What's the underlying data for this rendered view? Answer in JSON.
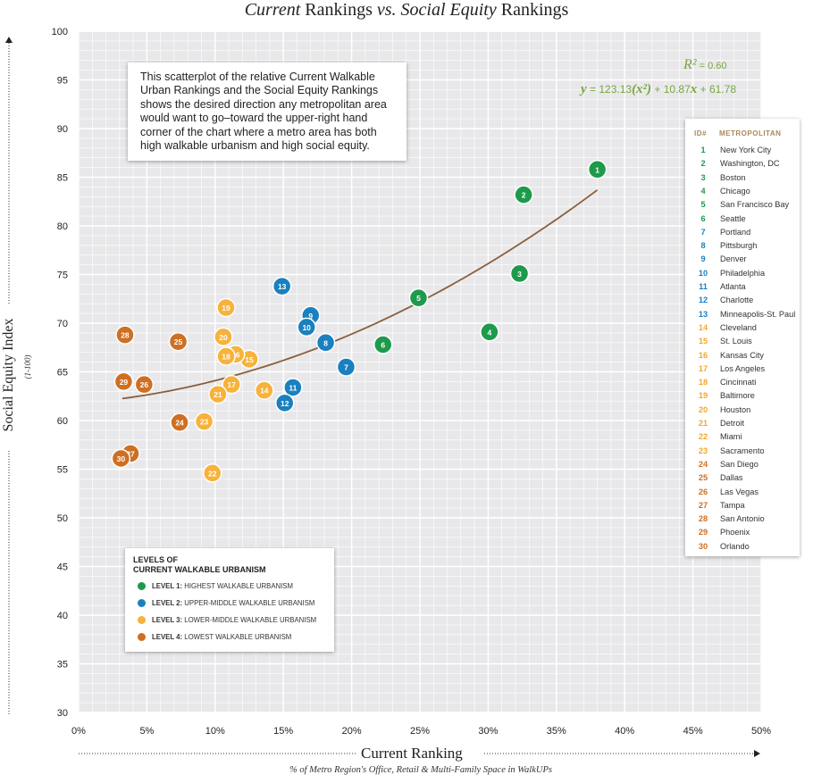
{
  "title": {
    "italic1": "Current",
    "mid": " Rankings ",
    "vs": "vs.",
    "italic2": " Social Equity",
    "end": " Rankings"
  },
  "annotation": "This scatterplot of the relative Current Walkable Urban Rankings and the Social Equity Rankings shows the desired direction any metropolitan area would want to go–toward the upper-right hand corner of the chart where a metro area has both high walkable urbanism and high social equity.",
  "r2": {
    "symbol": "R²",
    "value": " = 0.60"
  },
  "equation": {
    "y": "y",
    "text1": " = 123.13",
    "xsq": "(x²)",
    "text2": " + 10.87",
    "x": "x",
    "text3": " + 61.78"
  },
  "metro_list": {
    "header_id": "ID#",
    "header_name": "METROPOLITAN",
    "items": [
      {
        "id": "1",
        "name": "New York City",
        "level": 1
      },
      {
        "id": "2",
        "name": "Washington, DC",
        "level": 1
      },
      {
        "id": "3",
        "name": "Boston",
        "level": 1
      },
      {
        "id": "4",
        "name": "Chicago",
        "level": 1
      },
      {
        "id": "5",
        "name": "San Francisco Bay",
        "level": 1
      },
      {
        "id": "6",
        "name": "Seattle",
        "level": 1
      },
      {
        "id": "7",
        "name": "Portland",
        "level": 2
      },
      {
        "id": "8",
        "name": "Pittsburgh",
        "level": 2
      },
      {
        "id": "9",
        "name": "Denver",
        "level": 2
      },
      {
        "id": "10",
        "name": "Philadelphia",
        "level": 2
      },
      {
        "id": "11",
        "name": "Atlanta",
        "level": 2
      },
      {
        "id": "12",
        "name": "Charlotte",
        "level": 2
      },
      {
        "id": "13",
        "name": "Minneapolis-St. Paul",
        "level": 2
      },
      {
        "id": "14",
        "name": "Cleveland",
        "level": 3
      },
      {
        "id": "15",
        "name": "St. Louis",
        "level": 3
      },
      {
        "id": "16",
        "name": "Kansas City",
        "level": 3
      },
      {
        "id": "17",
        "name": "Los Angeles",
        "level": 3
      },
      {
        "id": "18",
        "name": "Cincinnati",
        "level": 3
      },
      {
        "id": "19",
        "name": "Baltimore",
        "level": 3
      },
      {
        "id": "20",
        "name": "Houston",
        "level": 3
      },
      {
        "id": "21",
        "name": "Detroit",
        "level": 3
      },
      {
        "id": "22",
        "name": "Miami",
        "level": 3
      },
      {
        "id": "23",
        "name": "Sacramento",
        "level": 3
      },
      {
        "id": "24",
        "name": "San Diego",
        "level": 4
      },
      {
        "id": "25",
        "name": "Dallas",
        "level": 4
      },
      {
        "id": "26",
        "name": "Las Vegas",
        "level": 4
      },
      {
        "id": "27",
        "name": "Tampa",
        "level": 4
      },
      {
        "id": "28",
        "name": "San Antonio",
        "level": 4
      },
      {
        "id": "29",
        "name": "Phoenix",
        "level": 4
      },
      {
        "id": "30",
        "name": "Orlando",
        "level": 4
      }
    ]
  },
  "legend": {
    "title_line1": "LEVELS OF",
    "title_line2": "CURRENT WALKABLE URBANISM",
    "items": [
      {
        "level": "LEVEL 1:",
        "text": " HIGHEST WALKABLE URBANISM",
        "color": "#1e9a4c"
      },
      {
        "level": "LEVEL 2:",
        "text": " UPPER-MIDDLE WALKABLE URBANISM",
        "color": "#1a80bf"
      },
      {
        "level": "LEVEL 3:",
        "text": " LOWER-MIDDLE WALKABLE URBANISM",
        "color": "#f7b23c"
      },
      {
        "level": "LEVEL 4:",
        "text": " LOWEST WALKABLE URBANISM",
        "color": "#cf6f22"
      }
    ]
  },
  "x_title": "Current Ranking",
  "x_subtitle": "% of Metro Region's Office, Retail & Multi-Family Space in WalkUPs",
  "y_title": "Social Equity Index",
  "y_subtitle": "(1-100)",
  "colors": {
    "plot_bg": "#e8e8ea",
    "grid": "#ffffff",
    "trend": "#8a5e3c",
    "level1": "#1e9a4c",
    "level2": "#1a80bf",
    "level3": "#f7b23c",
    "level4": "#cf6f22",
    "list_id_level1": "#1e9a4c",
    "list_id_level2": "#1a80bf",
    "list_id_level3": "#f0a830",
    "list_id_level4": "#cf6f22"
  },
  "chart_data": {
    "type": "scatter",
    "title": "Current Rankings vs. Social Equity Rankings",
    "xlabel": "Current Ranking",
    "ylabel": "Social Equity Index",
    "xlim": [
      0,
      50
    ],
    "ylim": [
      30,
      100
    ],
    "x_ticks": [
      "0%",
      "5%",
      "10%",
      "15%",
      "20%",
      "25%",
      "30%",
      "35%",
      "40%",
      "45%",
      "50%"
    ],
    "y_ticks": [
      "30",
      "35",
      "40",
      "45",
      "50",
      "55",
      "60",
      "65",
      "70",
      "75",
      "80",
      "85",
      "90",
      "95",
      "100"
    ],
    "trend": {
      "a": 123.13,
      "b": 10.87,
      "c": 61.78,
      "x_range": [
        3.2,
        38.0
      ]
    },
    "points": [
      {
        "id": "1",
        "x": 38.0,
        "y": 85.8,
        "level": 1
      },
      {
        "id": "2",
        "x": 32.6,
        "y": 83.2,
        "level": 1
      },
      {
        "id": "3",
        "x": 32.3,
        "y": 75.1,
        "level": 1
      },
      {
        "id": "4",
        "x": 30.1,
        "y": 69.1,
        "level": 1
      },
      {
        "id": "5",
        "x": 24.9,
        "y": 72.6,
        "level": 1
      },
      {
        "id": "6",
        "x": 22.3,
        "y": 67.8,
        "level": 1
      },
      {
        "id": "7",
        "x": 19.6,
        "y": 65.5,
        "level": 2
      },
      {
        "id": "8",
        "x": 18.1,
        "y": 68.0,
        "level": 2
      },
      {
        "id": "9",
        "x": 17.0,
        "y": 70.8,
        "level": 2
      },
      {
        "id": "10",
        "x": 16.7,
        "y": 69.6,
        "level": 2
      },
      {
        "id": "11",
        "x": 15.7,
        "y": 63.4,
        "level": 2
      },
      {
        "id": "12",
        "x": 15.1,
        "y": 61.8,
        "level": 2
      },
      {
        "id": "13",
        "x": 14.9,
        "y": 73.8,
        "level": 2
      },
      {
        "id": "14",
        "x": 13.6,
        "y": 63.1,
        "level": 3
      },
      {
        "id": "15",
        "x": 12.5,
        "y": 66.3,
        "level": 3
      },
      {
        "id": "16",
        "x": 11.5,
        "y": 66.8,
        "level": 3
      },
      {
        "id": "17",
        "x": 11.2,
        "y": 63.7,
        "level": 3
      },
      {
        "id": "18",
        "x": 10.8,
        "y": 66.6,
        "level": 3
      },
      {
        "id": "19",
        "x": 10.8,
        "y": 71.6,
        "level": 3
      },
      {
        "id": "20",
        "x": 10.6,
        "y": 68.6,
        "level": 3
      },
      {
        "id": "21",
        "x": 10.2,
        "y": 62.7,
        "level": 3
      },
      {
        "id": "22",
        "x": 9.8,
        "y": 54.6,
        "level": 3
      },
      {
        "id": "23",
        "x": 9.2,
        "y": 59.9,
        "level": 3
      },
      {
        "id": "24",
        "x": 7.4,
        "y": 59.8,
        "level": 4
      },
      {
        "id": "25",
        "x": 7.3,
        "y": 68.1,
        "level": 4
      },
      {
        "id": "26",
        "x": 4.8,
        "y": 63.7,
        "level": 4
      },
      {
        "id": "27",
        "x": 3.8,
        "y": 56.6,
        "level": 4
      },
      {
        "id": "28",
        "x": 3.4,
        "y": 68.8,
        "level": 4
      },
      {
        "id": "29",
        "x": 3.3,
        "y": 64.0,
        "level": 4
      },
      {
        "id": "30",
        "x": 3.1,
        "y": 56.1,
        "level": 4
      }
    ]
  }
}
